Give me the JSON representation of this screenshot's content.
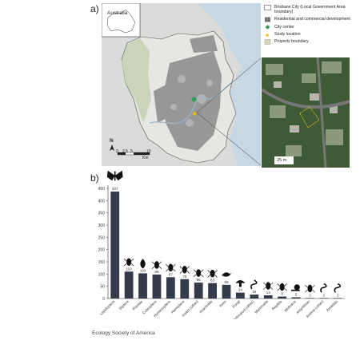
{
  "panels": {
    "a_label": "a)",
    "b_label": "b)"
  },
  "locator": {
    "label": "Australia"
  },
  "map": {
    "north_label": "N",
    "scale_ticks": [
      "0",
      "2.5",
      "5",
      "10"
    ],
    "scale_unit": "Km"
  },
  "inset": {
    "scale_label": "25 m"
  },
  "legend": {
    "items": [
      {
        "label": "Brisbane City (Local Government Area boundary)",
        "symbol": "boundary"
      },
      {
        "label": "Residential and commercial development",
        "symbol": "grey-square"
      },
      {
        "label": "City center",
        "symbol": "green-diamond"
      },
      {
        "label": "Study location",
        "symbol": "yellow-star"
      },
      {
        "label": "Property boundary",
        "symbol": "hatched-square"
      }
    ]
  },
  "chart_data": {
    "type": "bar",
    "categories": [
      "Lepidoptera",
      "Diptera",
      "Plantae",
      "Coleoptera",
      "Hymenoptera",
      "Hemiptera",
      "Insect (other)",
      "Arachnida",
      "Aves",
      "Fungi",
      "Arthropod (other)",
      "Mammalia",
      "Reptilia",
      "Mollusca",
      "Amphibian",
      "Animal (other)",
      "Annelida"
    ],
    "values": [
      437,
      110,
      103,
      98,
      87,
      79,
      65,
      63,
      56,
      24,
      16,
      13,
      8,
      5,
      2,
      2,
      2
    ],
    "value_labels": [
      "437",
      "110",
      "103",
      "98",
      "87",
      "79",
      "65",
      "63",
      "56",
      "24",
      "16",
      "13",
      "8",
      "5",
      "2",
      "2",
      "2"
    ],
    "icons": [
      "moth-icon",
      "fly-icon",
      "leaf-icon",
      "beetle-icon",
      "wasp-icon",
      "bug-icon",
      "mantis-icon",
      "spider-icon",
      "bird-icon",
      "mushroom-icon",
      "centipede-icon",
      "possum-icon",
      "lizard-icon",
      "snail-icon",
      "frog-icon",
      "snake-icon",
      "worm-icon"
    ],
    "yticks": [
      0,
      50,
      100,
      150,
      200,
      250,
      300,
      350,
      400,
      450
    ],
    "ylim": [
      0,
      450
    ],
    "bar_color": "#333b4a"
  },
  "footer": {
    "text": "Ecology Society of America"
  }
}
